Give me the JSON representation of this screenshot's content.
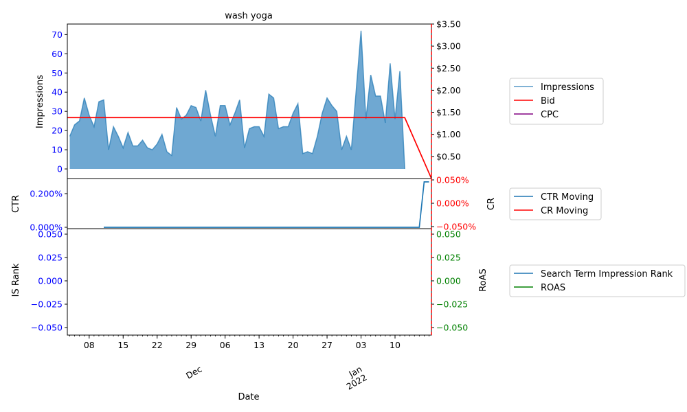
{
  "chart_data": [
    {
      "panel": "top",
      "type": "area",
      "title": "wash yoga",
      "ylabel": "Impressions",
      "ylim": [
        -5,
        75.5
      ],
      "yticks": [
        0,
        10,
        20,
        30,
        40,
        50,
        60,
        70
      ],
      "y2lim": [
        0,
        3.5
      ],
      "y2ticks": [
        "$0.50",
        "$1.00",
        "$1.50",
        "$2.00",
        "$2.50",
        "$3.00",
        "$3.50"
      ],
      "y2values": [
        0.5,
        1.0,
        1.5,
        2.0,
        2.5,
        3.0,
        3.5
      ],
      "series": [
        {
          "name": "Impressions",
          "axis": "left",
          "color": "#1f77b4",
          "values": [
            17,
            23,
            25,
            37,
            28,
            22,
            35,
            36,
            10,
            22,
            17,
            11,
            19,
            12,
            12,
            15,
            11,
            10,
            13,
            18,
            9,
            7,
            32,
            26,
            28,
            33,
            32,
            25,
            41,
            28,
            17,
            33,
            33,
            23,
            29,
            36,
            11,
            21,
            22,
            22,
            17,
            39,
            37,
            21,
            22,
            22,
            29,
            34,
            8,
            9,
            8,
            17,
            29,
            37,
            33,
            30,
            10,
            17,
            10,
            41,
            72,
            26,
            49,
            38,
            38,
            24,
            55,
            26,
            51,
            0
          ]
        },
        {
          "name": "Bid",
          "axis": "right",
          "color": "#ff0000",
          "values": [
            1.38,
            1.38,
            0.0
          ]
        },
        {
          "name": "CPC",
          "axis": "right",
          "color": "#800080",
          "values": []
        }
      ]
    },
    {
      "panel": "middle",
      "type": "line",
      "ylabel": "CTR",
      "y2label": "CR",
      "yticks": [
        "0.000%",
        "0.200%"
      ],
      "y2ticks": [
        "−0.050%",
        "0.000%",
        "0.050%"
      ],
      "series": [
        {
          "name": "CTR Moving",
          "axis": "left",
          "color": "#1f77b4",
          "x_start_index": 7,
          "values": [
            0,
            0,
            0,
            0,
            0,
            0,
            0,
            0,
            0,
            0,
            0,
            0,
            0,
            0,
            0,
            0,
            0,
            0,
            0,
            0,
            0,
            0,
            0,
            0,
            0,
            0,
            0,
            0,
            0,
            0,
            0,
            0,
            0,
            0,
            0,
            0,
            0,
            0,
            0,
            0,
            0,
            0,
            0,
            0,
            0,
            0,
            0,
            0,
            0,
            0,
            0,
            0,
            0,
            0,
            0,
            0,
            0,
            0,
            0,
            0,
            0,
            0,
            0,
            0,
            0,
            0,
            0.27,
            0.27
          ]
        },
        {
          "name": "CR Moving",
          "axis": "right",
          "color": "#ff0000",
          "values": []
        }
      ]
    },
    {
      "panel": "bottom",
      "type": "line",
      "ylabel": "IS Rank",
      "y2label": "RoAS",
      "yticks": [
        "−0.050",
        "−0.025",
        "0.000",
        "0.025",
        "0.050"
      ],
      "y2ticks": [
        "−0.050",
        "−0.025",
        "0.000",
        "0.025",
        "0.050"
      ],
      "xlabel": "Date",
      "xticks": [
        "08",
        "15",
        "22",
        "29",
        "06",
        "13",
        "20",
        "27",
        "03",
        "10"
      ],
      "xticks_secondary": [
        "Dec",
        "Jan\n2022"
      ],
      "series": [
        {
          "name": "Search Term Impression Rank",
          "axis": "left",
          "color": "#1f77b4",
          "values": []
        },
        {
          "name": "ROAS",
          "axis": "right",
          "color": "#008000",
          "values": []
        }
      ]
    }
  ],
  "legends": {
    "top": [
      "Impressions",
      "Bid",
      "CPC"
    ],
    "middle": [
      "CTR Moving",
      "CR Moving"
    ],
    "bottom": [
      "Search Term Impression Rank",
      "ROAS"
    ]
  },
  "colors": {
    "impressions": "#1f77b4",
    "impressions_fill": "#6fa8d2",
    "bid": "#ff0000",
    "cpc": "#800080",
    "ctr": "#1f77b4",
    "cr": "#ff0000",
    "is_rank": "#1f77b4",
    "roas": "#008000",
    "left_tick": "#0000ff",
    "cr_tick": "#ff0000",
    "roas_tick": "#008000"
  }
}
